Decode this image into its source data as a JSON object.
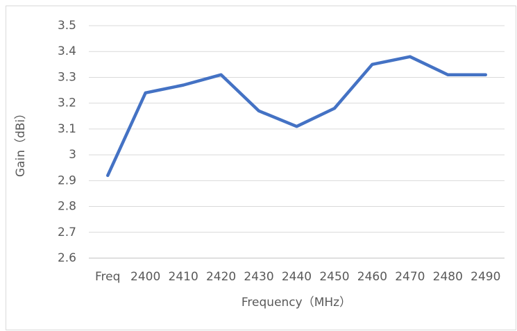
{
  "chart_data": {
    "type": "line",
    "x_label": "Frequency（MHz）",
    "y_label": "Gain（dBi）",
    "categories": [
      "Freq",
      "2400",
      "2410",
      "2420",
      "2430",
      "2440",
      "2450",
      "2460",
      "2470",
      "2480",
      "2490"
    ],
    "values": [
      2.92,
      3.24,
      3.27,
      3.31,
      3.17,
      3.11,
      3.18,
      3.35,
      3.38,
      3.31,
      3.31
    ],
    "color": "#4472c4",
    "ylim": [
      2.6,
      3.5
    ],
    "yticks": [
      2.6,
      2.7,
      2.8,
      2.9,
      3,
      3.1,
      3.2,
      3.3,
      3.4,
      3.5
    ],
    "grid": true
  }
}
